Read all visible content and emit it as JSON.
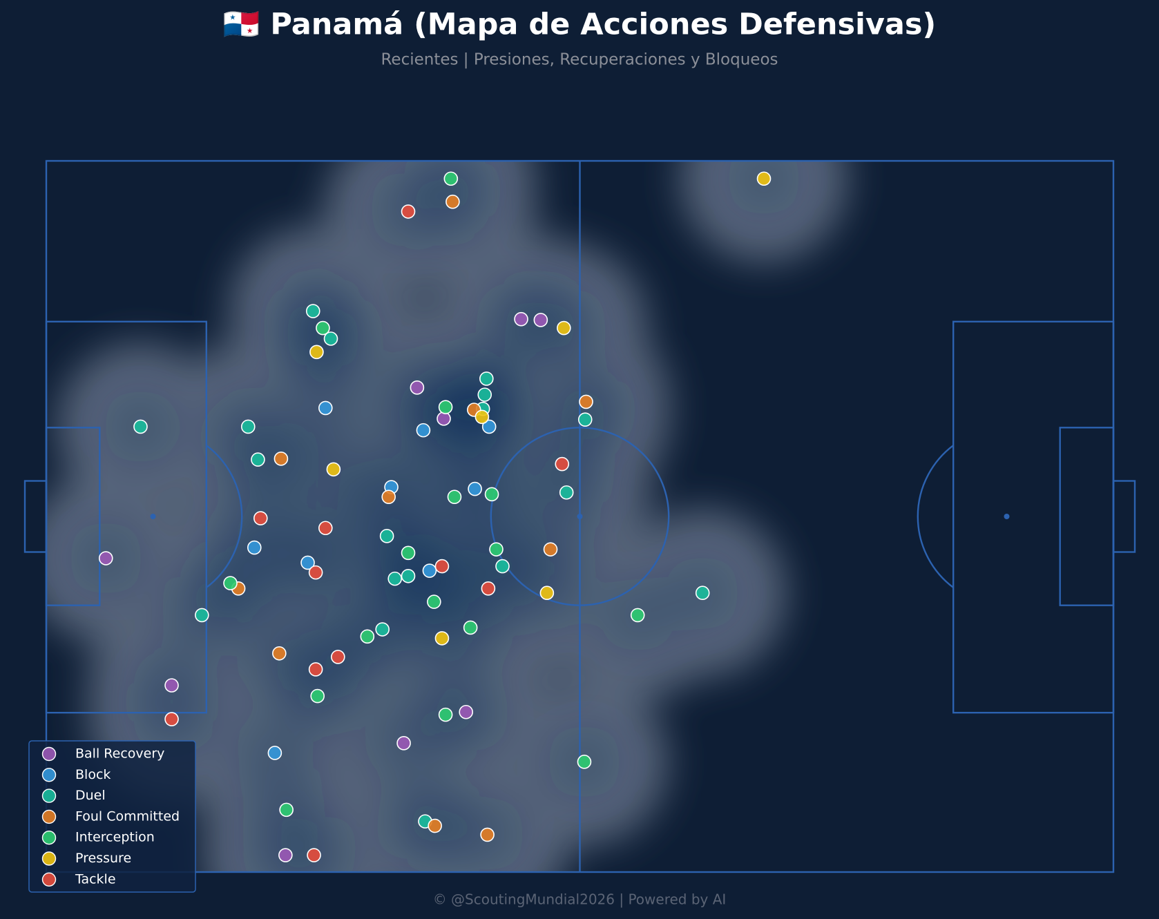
{
  "chart_data": {
    "type": "scatter",
    "title": "🇵🇦 Panamá (Mapa de Acciones Defensivas)",
    "subtitle": "Recientes | Presiones, Recuperaciones y Bloqueos",
    "footer": "© @ScoutingMundial2026 | Powered by AI",
    "xlim": [
      0,
      120
    ],
    "ylim": [
      0,
      80
    ],
    "y_inverted": true,
    "density": true,
    "legend": "lower left",
    "series": [
      {
        "name": "Ball Recovery",
        "color": "#9b59b6",
        "x": [
          53.4,
          55.6,
          41.7,
          44.7,
          6.7,
          14.1,
          47.2,
          40.2,
          26.9
        ],
        "y": [
          17.8,
          17.9,
          25.5,
          29.0,
          44.7,
          59.0,
          62.0,
          65.5,
          78.1
        ]
      },
      {
        "name": "Block",
        "color": "#3498db",
        "x": [
          31.4,
          42.4,
          49.8,
          38.8,
          48.2,
          23.4,
          29.4,
          43.1,
          25.7
        ],
        "y": [
          27.8,
          30.3,
          29.9,
          36.7,
          36.9,
          43.5,
          45.2,
          46.1,
          66.6
        ]
      },
      {
        "name": "Duel",
        "color": "#1abc9c",
        "x": [
          30.0,
          32.0,
          49.5,
          49.3,
          49.1,
          60.6,
          10.6,
          22.7,
          23.8,
          58.5,
          38.3,
          51.3,
          40.7,
          39.2,
          73.8,
          17.5,
          37.8,
          42.6
        ],
        "y": [
          16.9,
          20.0,
          24.5,
          26.3,
          27.9,
          29.1,
          29.9,
          29.9,
          33.6,
          37.3,
          42.2,
          45.6,
          46.7,
          47.0,
          48.6,
          51.1,
          52.7,
          74.3
        ]
      },
      {
        "name": "Foul Committed",
        "color": "#e67e22",
        "x": [
          45.7,
          48.1,
          60.7,
          26.4,
          38.5,
          56.7,
          21.6,
          26.2,
          43.7,
          49.6
        ],
        "y": [
          4.6,
          28.0,
          27.1,
          33.5,
          37.8,
          43.7,
          48.1,
          55.4,
          74.8,
          75.8
        ]
      },
      {
        "name": "Interception",
        "color": "#2ecc71",
        "x": [
          45.5,
          31.1,
          44.9,
          45.9,
          50.1,
          40.7,
          50.6,
          20.7,
          43.6,
          47.7,
          36.1,
          66.5,
          30.5,
          44.9,
          60.5,
          27.0
        ],
        "y": [
          2.0,
          18.8,
          27.7,
          37.8,
          37.5,
          44.1,
          43.7,
          47.5,
          49.6,
          52.5,
          53.5,
          51.1,
          60.2,
          62.3,
          67.6,
          73.0
        ]
      },
      {
        "name": "Pressure",
        "color": "#f1c40f",
        "x": [
          80.7,
          58.2,
          30.4,
          49.0,
          32.3,
          56.3,
          44.5
        ],
        "y": [
          2.0,
          18.8,
          21.5,
          28.8,
          34.7,
          48.6,
          53.7
        ]
      },
      {
        "name": "Tackle",
        "color": "#e74c3c",
        "x": [
          40.7,
          58.0,
          24.1,
          31.4,
          44.5,
          30.3,
          49.7,
          32.8,
          30.3,
          14.1,
          30.1
        ],
        "y": [
          5.7,
          34.1,
          40.2,
          41.3,
          45.6,
          46.3,
          48.1,
          55.8,
          57.2,
          62.8,
          78.1
        ]
      }
    ]
  }
}
